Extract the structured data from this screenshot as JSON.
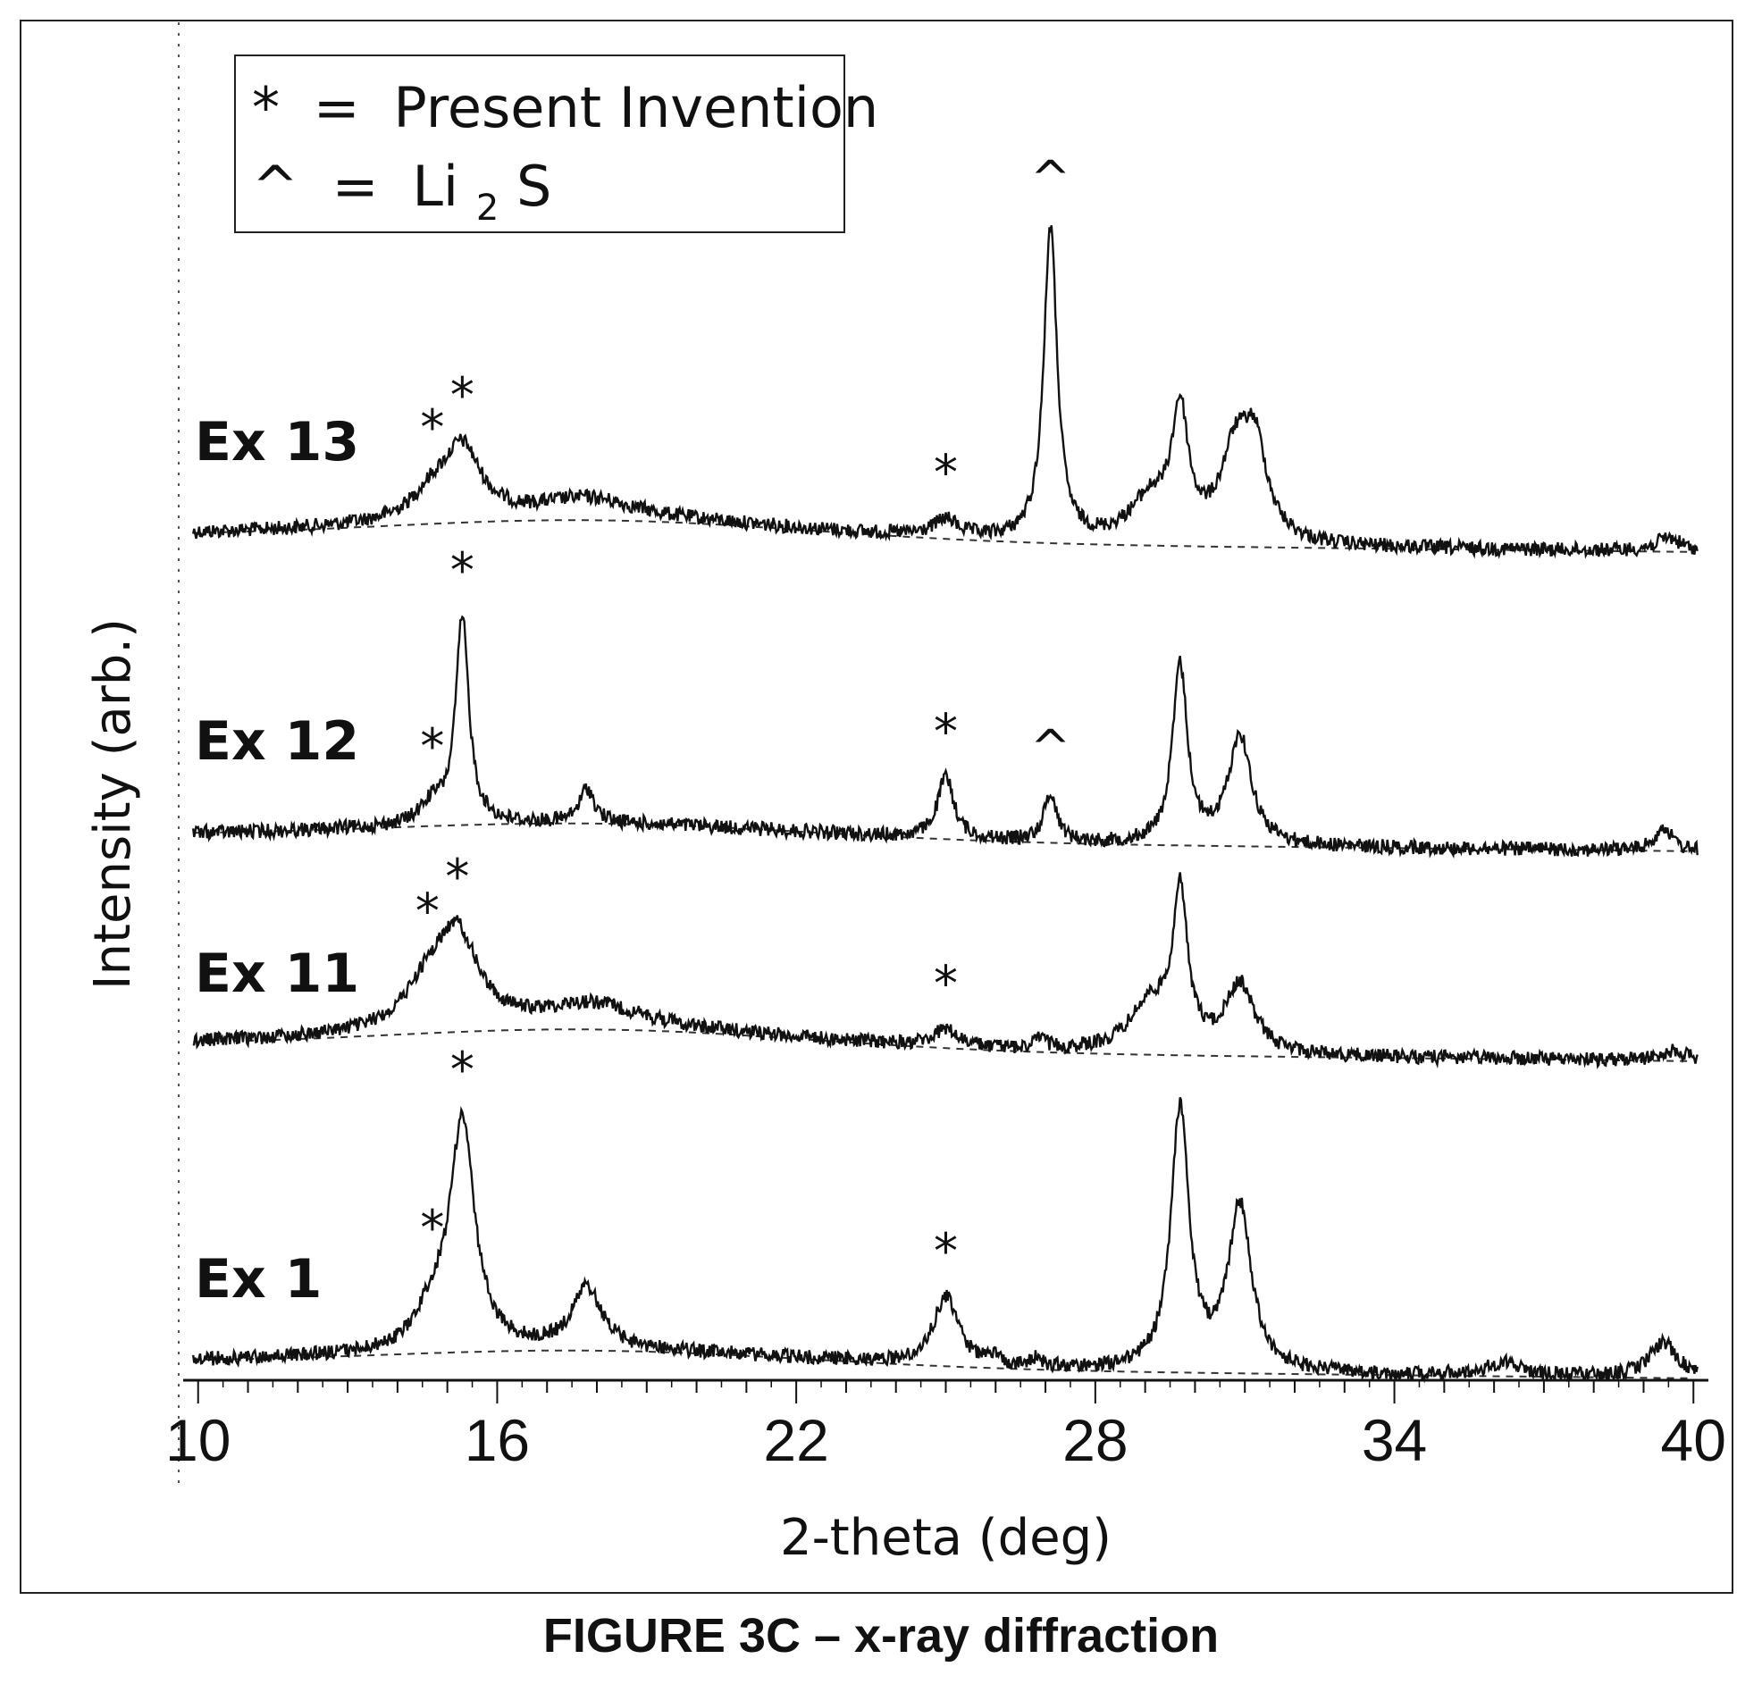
{
  "caption": "FIGURE 3C – x-ray diffraction",
  "chart_data": {
    "type": "line",
    "xlabel": "2-theta (deg)",
    "ylabel": "Intensity (arb.)",
    "xlim": [
      9.7,
      40.3
    ],
    "xticks": [
      10,
      16,
      22,
      28,
      34,
      40
    ],
    "legend": {
      "placement": "top-left",
      "entries": [
        {
          "symbol": "*",
          "eq": "=",
          "text": "Present Invention"
        },
        {
          "symbol": "^",
          "eq": "=",
          "text_main": "Li",
          "text_sub": "2",
          "text_end": "S"
        }
      ]
    },
    "series": [
      {
        "name": "Ex 13",
        "offset": 3,
        "baseline": 0.25,
        "peaks": [
          {
            "x": 14.7,
            "h": 0.35,
            "w": 0.5
          },
          {
            "x": 15.3,
            "h": 1.0,
            "w": 0.45
          },
          {
            "x": 17.8,
            "h": 0.3,
            "w": 1.2
          },
          {
            "x": 25.0,
            "h": 0.25,
            "w": 0.3
          },
          {
            "x": 27.1,
            "h": 4.6,
            "w": 0.16
          },
          {
            "x": 29.1,
            "h": 0.6,
            "w": 0.5
          },
          {
            "x": 29.7,
            "h": 1.8,
            "w": 0.2
          },
          {
            "x": 30.8,
            "h": 1.2,
            "w": 0.35
          },
          {
            "x": 31.2,
            "h": 1.3,
            "w": 0.3
          },
          {
            "x": 39.5,
            "h": 0.2,
            "w": 0.3
          }
        ],
        "markers": [
          {
            "symbol": "*",
            "x": 14.7
          },
          {
            "symbol": "*",
            "x": 15.3
          },
          {
            "symbol": "*",
            "x": 25.0
          },
          {
            "symbol": "^",
            "x": 27.1
          }
        ]
      },
      {
        "name": "Ex 12",
        "offset": 2,
        "baseline": 0.2,
        "peaks": [
          {
            "x": 14.7,
            "h": 0.3,
            "w": 0.3
          },
          {
            "x": 15.3,
            "h": 3.0,
            "w": 0.16
          },
          {
            "x": 17.8,
            "h": 0.5,
            "w": 0.18
          },
          {
            "x": 25.0,
            "h": 0.9,
            "w": 0.2
          },
          {
            "x": 27.1,
            "h": 0.7,
            "w": 0.16
          },
          {
            "x": 29.7,
            "h": 2.6,
            "w": 0.18
          },
          {
            "x": 30.9,
            "h": 1.6,
            "w": 0.28
          },
          {
            "x": 39.4,
            "h": 0.35,
            "w": 0.2
          }
        ],
        "markers": [
          {
            "symbol": "*",
            "x": 14.7
          },
          {
            "symbol": "*",
            "x": 15.3
          },
          {
            "symbol": "*",
            "x": 25.0
          },
          {
            "symbol": "^",
            "x": 27.1
          }
        ]
      },
      {
        "name": "Ex 11",
        "offset": 1,
        "baseline": 0.25,
        "peaks": [
          {
            "x": 14.6,
            "h": 0.55,
            "w": 0.55
          },
          {
            "x": 15.2,
            "h": 1.3,
            "w": 0.5
          },
          {
            "x": 17.9,
            "h": 0.35,
            "w": 1.2
          },
          {
            "x": 25.0,
            "h": 0.25,
            "w": 0.3
          },
          {
            "x": 26.9,
            "h": 0.15,
            "w": 0.15
          },
          {
            "x": 29.1,
            "h": 0.7,
            "w": 0.5
          },
          {
            "x": 29.7,
            "h": 2.2,
            "w": 0.18
          },
          {
            "x": 30.9,
            "h": 1.0,
            "w": 0.35
          },
          {
            "x": 39.6,
            "h": 0.15,
            "w": 0.3
          }
        ],
        "markers": [
          {
            "symbol": "*",
            "x": 14.6
          },
          {
            "symbol": "*",
            "x": 15.2
          },
          {
            "symbol": "*",
            "x": 25.0
          }
        ]
      },
      {
        "name": "Ex 1",
        "offset": 0,
        "baseline": 0.2,
        "peaks": [
          {
            "x": 14.7,
            "h": 0.5,
            "w": 0.4
          },
          {
            "x": 15.3,
            "h": 3.3,
            "w": 0.3
          },
          {
            "x": 17.8,
            "h": 0.9,
            "w": 0.35
          },
          {
            "x": 25.0,
            "h": 1.0,
            "w": 0.3
          },
          {
            "x": 25.9,
            "h": 0.12,
            "w": 0.15
          },
          {
            "x": 26.8,
            "h": 0.12,
            "w": 0.15
          },
          {
            "x": 29.7,
            "h": 3.8,
            "w": 0.22
          },
          {
            "x": 30.9,
            "h": 2.4,
            "w": 0.28
          },
          {
            "x": 36.2,
            "h": 0.2,
            "w": 0.4
          },
          {
            "x": 39.4,
            "h": 0.5,
            "w": 0.35
          }
        ],
        "markers": [
          {
            "symbol": "*",
            "x": 14.7
          },
          {
            "symbol": "*",
            "x": 15.3
          },
          {
            "symbol": "*",
            "x": 25.0
          }
        ]
      }
    ]
  }
}
